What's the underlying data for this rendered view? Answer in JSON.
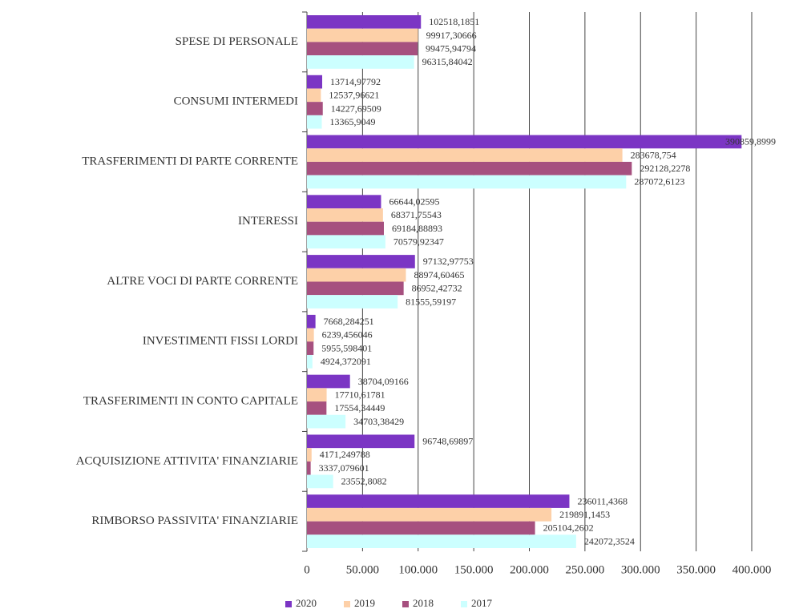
{
  "chart_data": {
    "type": "hbar",
    "categories": [
      "SPESE DI PERSONALE",
      "CONSUMI INTERMEDI",
      "TRASFERIMENTI DI PARTE CORRENTE",
      "INTERESSI",
      "ALTRE VOCI DI PARTE CORRENTE",
      "INVESTIMENTI FISSI LORDI",
      "TRASFERIMENTI IN CONTO CAPITALE",
      "ACQUISIZIONE ATTIVITA' FINANZIARIE",
      "RIMBORSO PASSIVITA' FINANZIARIE"
    ],
    "series": [
      {
        "name": "2020",
        "color": "#7b35c4",
        "values": [
          102518.1851,
          13714.97792,
          390859.8999,
          66644.02595,
          97132.97753,
          7668.284251,
          38704.09166,
          96748.69897,
          236011.4368
        ],
        "value_labels": [
          "102518,1851",
          "13714,97792",
          "390859,8999",
          "66644,02595",
          "97132,97753",
          "7668,284251",
          "38704,09166",
          "96748,69897",
          "236011,4368"
        ]
      },
      {
        "name": "2019",
        "color": "#fdd0a8",
        "values": [
          99917.30666,
          12537.96621,
          283678.754,
          68371.75543,
          88974.60465,
          6239.456046,
          17710.61781,
          4171.249788,
          219891.1453
        ],
        "value_labels": [
          "99917,30666",
          "12537,96621",
          "283678,754",
          "68371,75543",
          "88974,60465",
          "6239,456046",
          "17710,61781",
          "4171,249788",
          "219891,1453"
        ]
      },
      {
        "name": "2018",
        "color": "#a6507f",
        "values": [
          99475.94794,
          14227.69509,
          292128.2278,
          69184.88893,
          86952.42732,
          5955.598401,
          17554.34449,
          3337.079601,
          205104.2602
        ],
        "value_labels": [
          "99475,94794",
          "14227,69509",
          "292128,2278",
          "69184,88893",
          "86952,42732",
          "5955,598401",
          "17554,34449",
          "3337,079601",
          "205104,2602"
        ]
      },
      {
        "name": "2017",
        "color": "#ccffff",
        "values": [
          96315.84042,
          13365.9049,
          287072.6123,
          70579.92347,
          81555.59197,
          4924.372091,
          34703.38429,
          23552.8082,
          242072.3524
        ],
        "value_labels": [
          "96315,84042",
          "13365,9049",
          "287072,6123",
          "70579,92347",
          "81555,59197",
          "4924,372091",
          "34703,38429",
          "23552,8082",
          "242072,3524"
        ]
      }
    ],
    "xlim": [
      0,
      400000
    ],
    "xticks": [
      0,
      {
        "value": 50000,
        "label": "50.000"
      },
      {
        "value": 100000,
        "label": "100.000"
      },
      {
        "value": 150000,
        "label": "150.000"
      },
      {
        "value": 200000,
        "label": "200.000"
      },
      {
        "value": 250000,
        "label": "250.000"
      },
      {
        "value": 300000,
        "label": "300.000"
      },
      {
        "value": 350000,
        "label": "350.000"
      },
      {
        "value": 400000,
        "label": "400.000"
      }
    ],
    "grid": true,
    "legend": "bottom"
  }
}
